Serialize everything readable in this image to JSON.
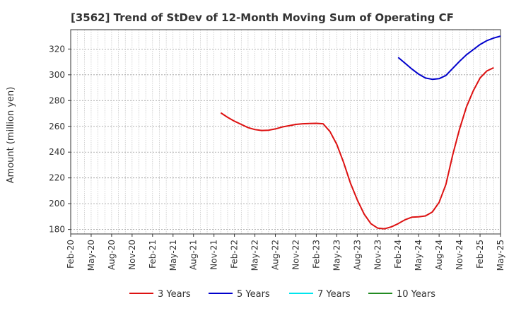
{
  "chart_data": {
    "type": "line",
    "title": "[3562]  Trend of StDev of 12-Month Moving Sum of Operating CF",
    "xlabel": "",
    "ylabel": "Amount (million yen)",
    "ylim": [
      176.5,
      335
    ],
    "yticks": [
      180,
      200,
      220,
      240,
      260,
      280,
      300,
      320
    ],
    "xlim": [
      "2020-02",
      "2025-05"
    ],
    "xticks": [
      "Feb-20",
      "May-20",
      "Aug-20",
      "Nov-20",
      "Feb-21",
      "May-21",
      "Aug-21",
      "Nov-21",
      "Feb-22",
      "May-22",
      "Aug-22",
      "Nov-22",
      "Feb-23",
      "May-23",
      "Aug-23",
      "Nov-23",
      "Feb-24",
      "May-24",
      "Aug-24",
      "Nov-24",
      "Feb-25",
      "May-25"
    ],
    "grid": true,
    "legend_position": "bottom",
    "series": [
      {
        "name": "3 Years",
        "color": "#dd1111",
        "points": [
          [
            "2021-12",
            270.5
          ],
          [
            "2022-01",
            267
          ],
          [
            "2022-02",
            264
          ],
          [
            "2022-03",
            261.5
          ],
          [
            "2022-04",
            259
          ],
          [
            "2022-05",
            257.5
          ],
          [
            "2022-06",
            256.8
          ],
          [
            "2022-07",
            257
          ],
          [
            "2022-08",
            258
          ],
          [
            "2022-09",
            259.5
          ],
          [
            "2022-10",
            260.5
          ],
          [
            "2022-11",
            261.5
          ],
          [
            "2022-12",
            262
          ],
          [
            "2023-01",
            262.2
          ],
          [
            "2023-02",
            262.3
          ],
          [
            "2023-03",
            262
          ],
          [
            "2023-04",
            256
          ],
          [
            "2023-05",
            246
          ],
          [
            "2023-06",
            232
          ],
          [
            "2023-07",
            216
          ],
          [
            "2023-08",
            203
          ],
          [
            "2023-09",
            192
          ],
          [
            "2023-10",
            184.5
          ],
          [
            "2023-11",
            181
          ],
          [
            "2023-12",
            180.5
          ],
          [
            "2024-01",
            182
          ],
          [
            "2024-02",
            184.5
          ],
          [
            "2024-03",
            187.5
          ],
          [
            "2024-04",
            189.5
          ],
          [
            "2024-05",
            189.8
          ],
          [
            "2024-06",
            190.5
          ],
          [
            "2024-07",
            193.5
          ],
          [
            "2024-08",
            201
          ],
          [
            "2024-09",
            215
          ],
          [
            "2024-10",
            238
          ],
          [
            "2024-11",
            258
          ],
          [
            "2024-12",
            275
          ],
          [
            "2025-01",
            287.5
          ],
          [
            "2025-02",
            297.5
          ],
          [
            "2025-03",
            303
          ],
          [
            "2025-04",
            305.5
          ]
        ]
      },
      {
        "name": "5 Years",
        "color": "#0000cc",
        "points": [
          [
            "2024-02",
            313.5
          ],
          [
            "2024-03",
            309
          ],
          [
            "2024-04",
            304.5
          ],
          [
            "2024-05",
            300.5
          ],
          [
            "2024-06",
            297.5
          ],
          [
            "2024-07",
            296.5
          ],
          [
            "2024-08",
            297
          ],
          [
            "2024-09",
            299.5
          ],
          [
            "2024-10",
            305
          ],
          [
            "2024-11",
            310.5
          ],
          [
            "2024-12",
            315.5
          ],
          [
            "2025-01",
            319.5
          ],
          [
            "2025-02",
            323.5
          ],
          [
            "2025-03",
            326.5
          ],
          [
            "2025-04",
            328.5
          ],
          [
            "2025-05",
            330
          ]
        ]
      },
      {
        "name": "7 Years",
        "color": "#00e5ee",
        "points": []
      },
      {
        "name": "10 Years",
        "color": "#228b22",
        "points": []
      }
    ]
  }
}
